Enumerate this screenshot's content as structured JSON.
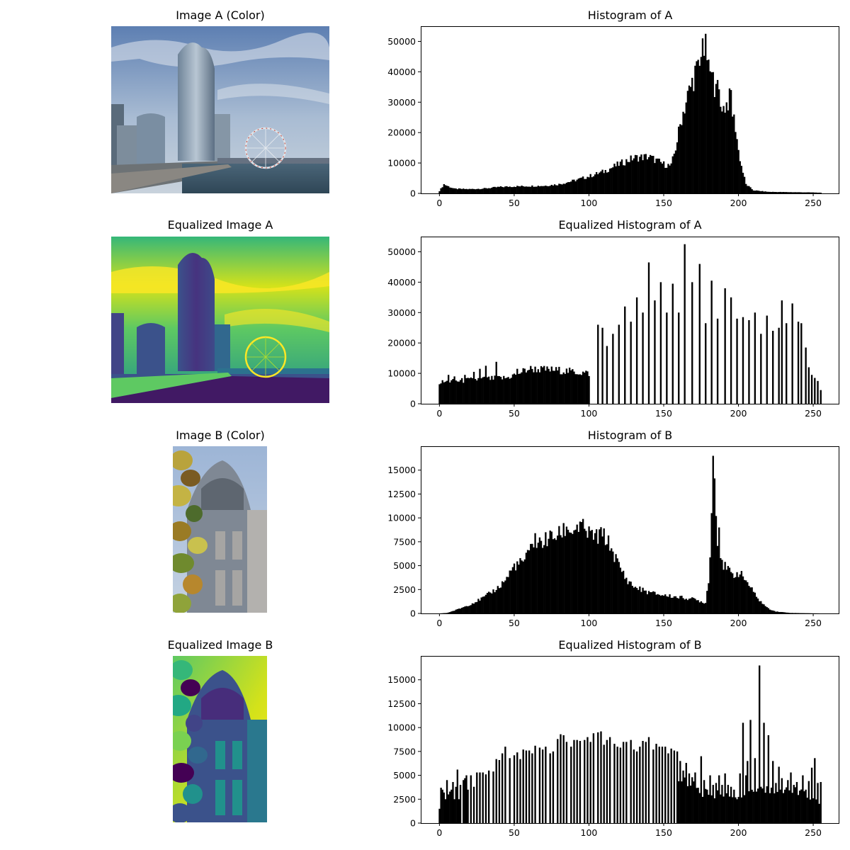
{
  "panels": [
    {
      "image_title": "Image A (Color)",
      "hist_title": "Histogram of A"
    },
    {
      "image_title": "Equalized Image A",
      "hist_title": "Equalized Histogram of A"
    },
    {
      "image_title": "Image B (Color)",
      "hist_title": "Histogram of B"
    },
    {
      "image_title": "Equalized Image B",
      "hist_title": "Equalized Histogram of B"
    }
  ],
  "colors": {
    "bars": "#000000",
    "axes": "#000000",
    "background": "#ffffff"
  },
  "chart_data": [
    {
      "type": "bar",
      "title": "Histogram of A",
      "xlim": [
        -12,
        268
      ],
      "ylim": [
        0,
        55000
      ],
      "xticks": [
        0,
        50,
        100,
        150,
        200,
        250
      ],
      "yticks": [
        0,
        10000,
        20000,
        30000,
        40000,
        50000
      ],
      "grid": false,
      "profile": [
        [
          0,
          800
        ],
        [
          3,
          3000
        ],
        [
          6,
          2300
        ],
        [
          10,
          1500
        ],
        [
          20,
          1400
        ],
        [
          30,
          1600
        ],
        [
          40,
          2100
        ],
        [
          50,
          2300
        ],
        [
          60,
          2400
        ],
        [
          70,
          2500
        ],
        [
          80,
          3000
        ],
        [
          90,
          4200
        ],
        [
          100,
          5600
        ],
        [
          110,
          7200
        ],
        [
          120,
          9600
        ],
        [
          130,
          11700
        ],
        [
          140,
          12100
        ],
        [
          150,
          9600
        ],
        [
          155,
          9000
        ],
        [
          158,
          15000
        ],
        [
          162,
          25000
        ],
        [
          166,
          32000
        ],
        [
          170,
          38000
        ],
        [
          174,
          42000
        ],
        [
          178,
          48000
        ],
        [
          182,
          38000
        ],
        [
          186,
          34000
        ],
        [
          190,
          28000
        ],
        [
          194,
          31000
        ],
        [
          198,
          22000
        ],
        [
          200,
          14000
        ],
        [
          202,
          9000
        ],
        [
          205,
          3000
        ],
        [
          210,
          1000
        ],
        [
          220,
          500
        ],
        [
          250,
          300
        ],
        [
          255,
          200
        ]
      ],
      "spikes": [
        [
          176,
          51000
        ],
        [
          178,
          52500
        ],
        [
          171,
          42000
        ],
        [
          180,
          44000
        ],
        [
          195,
          34000
        ],
        [
          185,
          36000
        ],
        [
          188,
          28500
        ]
      ]
    },
    {
      "type": "bar",
      "title": "Equalized Histogram of A",
      "xlim": [
        -12,
        268
      ],
      "ylim": [
        0,
        55000
      ],
      "xticks": [
        0,
        50,
        100,
        150,
        200,
        250
      ],
      "yticks": [
        0,
        10000,
        20000,
        30000,
        40000,
        50000
      ],
      "grid": false,
      "profile": [
        [
          0,
          7000
        ],
        [
          25,
          8000
        ],
        [
          45,
          8500
        ],
        [
          60,
          11500
        ],
        [
          80,
          11000
        ],
        [
          100,
          10000
        ]
      ],
      "sparse_bars": [
        [
          106,
          26000
        ],
        [
          109,
          25000
        ],
        [
          112,
          19000
        ],
        [
          116,
          23000
        ],
        [
          120,
          26000
        ],
        [
          124,
          32000
        ],
        [
          128,
          27000
        ],
        [
          132,
          35000
        ],
        [
          136,
          30000
        ],
        [
          140,
          46500
        ],
        [
          144,
          34000
        ],
        [
          148,
          40000
        ],
        [
          152,
          30000
        ],
        [
          156,
          39500
        ],
        [
          160,
          30000
        ],
        [
          164,
          52500
        ],
        [
          169,
          40000
        ],
        [
          174,
          46000
        ],
        [
          178,
          26500
        ],
        [
          182,
          40500
        ],
        [
          186,
          28000
        ],
        [
          191,
          38000
        ],
        [
          195,
          35000
        ],
        [
          199,
          28000
        ],
        [
          203,
          28500
        ],
        [
          207,
          27500
        ],
        [
          211,
          30000
        ],
        [
          215,
          23000
        ],
        [
          219,
          29000
        ],
        [
          223,
          24000
        ],
        [
          227,
          25000
        ],
        [
          229,
          34000
        ],
        [
          232,
          26500
        ],
        [
          236,
          33000
        ],
        [
          240,
          27000
        ],
        [
          242,
          26500
        ],
        [
          245,
          18500
        ],
        [
          247,
          12000
        ],
        [
          249,
          9500
        ],
        [
          251,
          8500
        ],
        [
          253,
          7500
        ],
        [
          255,
          4500
        ]
      ],
      "low_end_bars": [
        [
          6,
          9500
        ],
        [
          10,
          9000
        ],
        [
          17,
          9500
        ],
        [
          23,
          10500
        ],
        [
          27,
          11500
        ],
        [
          31,
          12500
        ],
        [
          38,
          13800
        ],
        [
          52,
          11500
        ]
      ]
    },
    {
      "type": "bar",
      "title": "Histogram of B",
      "xlim": [
        -12,
        268
      ],
      "ylim": [
        0,
        17500
      ],
      "xticks": [
        0,
        50,
        100,
        150,
        200,
        250
      ],
      "yticks": [
        0,
        2500,
        5000,
        7500,
        10000,
        12500,
        15000
      ],
      "grid": false,
      "profile": [
        [
          0,
          0
        ],
        [
          5,
          50
        ],
        [
          10,
          300
        ],
        [
          20,
          900
        ],
        [
          30,
          1700
        ],
        [
          40,
          2800
        ],
        [
          45,
          3700
        ],
        [
          50,
          5000
        ],
        [
          55,
          5300
        ],
        [
          60,
          6200
        ],
        [
          62,
          7700
        ],
        [
          65,
          7200
        ],
        [
          70,
          7600
        ],
        [
          75,
          8000
        ],
        [
          80,
          8200
        ],
        [
          85,
          9000
        ],
        [
          90,
          8600
        ],
        [
          95,
          9000
        ],
        [
          100,
          8300
        ],
        [
          105,
          8000
        ],
        [
          110,
          8200
        ],
        [
          115,
          6800
        ],
        [
          120,
          5000
        ],
        [
          125,
          3600
        ],
        [
          130,
          2800
        ],
        [
          140,
          2200
        ],
        [
          150,
          1900
        ],
        [
          160,
          1700
        ],
        [
          170,
          1500
        ],
        [
          178,
          1100
        ],
        [
          180,
          3500
        ],
        [
          182,
          9500
        ],
        [
          184,
          14500
        ],
        [
          186,
          8000
        ],
        [
          188,
          6500
        ],
        [
          190,
          5000
        ],
        [
          193,
          4500
        ],
        [
          196,
          4000
        ],
        [
          200,
          4300
        ],
        [
          205,
          3500
        ],
        [
          210,
          2200
        ],
        [
          215,
          1200
        ],
        [
          220,
          500
        ],
        [
          225,
          200
        ],
        [
          235,
          50
        ],
        [
          255,
          0
        ]
      ],
      "spikes": [
        [
          183,
          16500
        ],
        [
          182,
          10500
        ],
        [
          185,
          10200
        ],
        [
          187,
          9000
        ],
        [
          64,
          8400
        ],
        [
          92,
          9300
        ],
        [
          107,
          8800
        ]
      ]
    },
    {
      "type": "bar",
      "title": "Equalized Histogram of B",
      "xlim": [
        -12,
        268
      ],
      "ylim": [
        0,
        17500
      ],
      "xticks": [
        0,
        50,
        100,
        150,
        200,
        250
      ],
      "yticks": [
        0,
        2500,
        5000,
        7500,
        10000,
        12500,
        15000
      ],
      "grid": false,
      "bars": [
        [
          0,
          1500
        ],
        [
          1,
          3700
        ],
        [
          2,
          3500
        ],
        [
          3,
          3200
        ],
        [
          4,
          2500
        ],
        [
          5,
          4500
        ],
        [
          6,
          3000
        ],
        [
          7,
          3300
        ],
        [
          8,
          3500
        ],
        [
          9,
          4300
        ],
        [
          10,
          2500
        ],
        [
          11,
          3800
        ],
        [
          12,
          5600
        ],
        [
          13,
          2500
        ],
        [
          14,
          4000
        ],
        [
          16,
          4500
        ],
        [
          17,
          4700
        ],
        [
          18,
          5000
        ],
        [
          19,
          3500
        ],
        [
          21,
          5000
        ],
        [
          23,
          3800
        ],
        [
          25,
          5300
        ],
        [
          27,
          5300
        ],
        [
          29,
          5300
        ],
        [
          31,
          5100
        ],
        [
          33,
          5500
        ],
        [
          36,
          5400
        ],
        [
          38,
          6700
        ],
        [
          40,
          6600
        ],
        [
          42,
          7300
        ],
        [
          44,
          8000
        ],
        [
          47,
          6800
        ],
        [
          50,
          7100
        ],
        [
          52,
          7400
        ],
        [
          54,
          6700
        ],
        [
          56,
          7700
        ],
        [
          58,
          7600
        ],
        [
          60,
          7600
        ],
        [
          62,
          7300
        ],
        [
          64,
          8100
        ],
        [
          67,
          7900
        ],
        [
          69,
          7700
        ],
        [
          71,
          8000
        ],
        [
          74,
          7300
        ],
        [
          76,
          7500
        ],
        [
          79,
          8800
        ],
        [
          81,
          9300
        ],
        [
          83,
          9200
        ],
        [
          85,
          8500
        ],
        [
          88,
          8000
        ],
        [
          90,
          8700
        ],
        [
          92,
          8700
        ],
        [
          94,
          8600
        ],
        [
          97,
          8700
        ],
        [
          99,
          9000
        ],
        [
          101,
          8500
        ],
        [
          103,
          9400
        ],
        [
          106,
          9500
        ],
        [
          108,
          9600
        ],
        [
          110,
          8200
        ],
        [
          112,
          8700
        ],
        [
          114,
          9000
        ],
        [
          117,
          8300
        ],
        [
          119,
          8000
        ],
        [
          121,
          7900
        ],
        [
          123,
          8500
        ],
        [
          125,
          8500
        ],
        [
          128,
          8700
        ],
        [
          130,
          7700
        ],
        [
          132,
          7500
        ],
        [
          134,
          8000
        ],
        [
          136,
          8600
        ],
        [
          138,
          8500
        ],
        [
          140,
          9000
        ],
        [
          143,
          7700
        ],
        [
          145,
          8300
        ],
        [
          147,
          8000
        ],
        [
          149,
          8000
        ],
        [
          151,
          8000
        ],
        [
          153,
          7300
        ],
        [
          155,
          7800
        ],
        [
          157,
          7600
        ],
        [
          159,
          7500
        ],
        [
          161,
          6500
        ],
        [
          163,
          5500
        ],
        [
          165,
          6300
        ],
        [
          167,
          5200
        ],
        [
          169,
          4800
        ],
        [
          171,
          5300
        ],
        [
          173,
          3700
        ],
        [
          175,
          7000
        ],
        [
          177,
          4500
        ],
        [
          179,
          3500
        ],
        [
          181,
          5000
        ],
        [
          183,
          4000
        ],
        [
          185,
          4200
        ],
        [
          187,
          5000
        ],
        [
          189,
          4000
        ],
        [
          191,
          5200
        ],
        [
          193,
          4000
        ],
        [
          195,
          3800
        ],
        [
          197,
          3500
        ],
        [
          199,
          2500
        ],
        [
          201,
          5200
        ],
        [
          203,
          10500
        ],
        [
          205,
          5000
        ],
        [
          206,
          6500
        ],
        [
          208,
          10800
        ],
        [
          211,
          6800
        ],
        [
          214,
          16500
        ],
        [
          217,
          10500
        ],
        [
          220,
          9200
        ],
        [
          223,
          6500
        ],
        [
          225,
          4200
        ],
        [
          227,
          5900
        ],
        [
          229,
          4700
        ],
        [
          231,
          3500
        ],
        [
          233,
          4500
        ],
        [
          235,
          5300
        ],
        [
          237,
          4000
        ],
        [
          239,
          4300
        ],
        [
          241,
          3400
        ],
        [
          243,
          5000
        ],
        [
          245,
          3500
        ],
        [
          247,
          4400
        ],
        [
          249,
          5800
        ],
        [
          251,
          6800
        ],
        [
          253,
          4200
        ],
        [
          255,
          4300
        ]
      ],
      "fill_profile": [
        [
          165,
          4500
        ],
        [
          175,
          3200
        ],
        [
          185,
          3000
        ],
        [
          195,
          3000
        ],
        [
          200,
          2500
        ],
        [
          205,
          3500
        ],
        [
          225,
          3300
        ],
        [
          240,
          3300
        ],
        [
          255,
          2000
        ]
      ]
    }
  ]
}
